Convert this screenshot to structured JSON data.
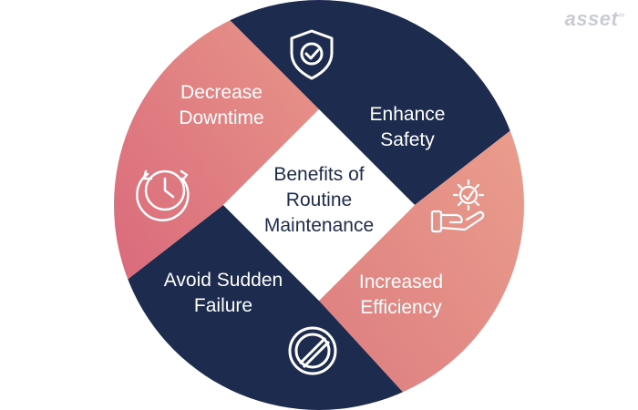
{
  "brand": {
    "name": "asset",
    "mark": "∞"
  },
  "center": {
    "title": "Benefits of\nRoutine\nMaintenance"
  },
  "segments": [
    {
      "id": "top",
      "label": "Enhance\nSafety",
      "icon": "shield-check-icon",
      "color": "#1d2b4f"
    },
    {
      "id": "right",
      "label": "Increased\nEfficiency",
      "icon": "hand-gear-icon",
      "color": "#e48f84"
    },
    {
      "id": "bottom",
      "label": "Avoid Sudden\nFailure",
      "icon": "prohibited-icon",
      "color": "#1d2b4f"
    },
    {
      "id": "left",
      "label": "Decrease\nDowntime",
      "icon": "stopwatch-icon",
      "color": "#e07c7e"
    }
  ],
  "colors": {
    "navy": "#1d2b4f",
    "coral": "#e07c7e",
    "coral_light": "#e8978a",
    "center_bg": "#ffffff"
  }
}
